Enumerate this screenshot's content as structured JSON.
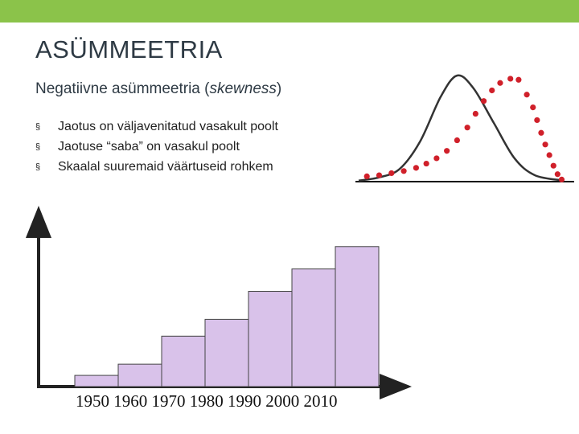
{
  "slide": {
    "title": "ASÜMMEETRIA",
    "subtitle_text": "Negatiivne asümmeetria (",
    "subtitle_italic": "skewness",
    "subtitle_close": ")",
    "bullet_marker": "§",
    "bullets": [
      "Jaotus on väljavenitatud vasakult poolt",
      "Jaotuse “saba” on vasakul poolt",
      "Skaalal suuremaid väärtuseid rohkem"
    ],
    "accent_color": "#8bc34a"
  },
  "chart_data": [
    {
      "type": "line",
      "description_role": "skew-illustration",
      "series": [
        {
          "color": "#333333",
          "style": "solid",
          "values": [
            {
              "x": 0.0,
              "y": 0.01
            },
            {
              "x": 0.1,
              "y": 0.04
            },
            {
              "x": 0.2,
              "y": 0.12
            },
            {
              "x": 0.3,
              "y": 0.38
            },
            {
              "x": 0.4,
              "y": 0.8
            },
            {
              "x": 0.48,
              "y": 1.0
            },
            {
              "x": 0.56,
              "y": 0.88
            },
            {
              "x": 0.66,
              "y": 0.55
            },
            {
              "x": 0.76,
              "y": 0.22
            },
            {
              "x": 0.86,
              "y": 0.06
            },
            {
              "x": 1.0,
              "y": 0.01
            }
          ]
        },
        {
          "color": "#d0202a",
          "style": "dotted",
          "values": [
            {
              "x": 0.04,
              "y": 0.05
            },
            {
              "x": 0.1,
              "y": 0.06
            },
            {
              "x": 0.16,
              "y": 0.08
            },
            {
              "x": 0.22,
              "y": 0.1
            },
            {
              "x": 0.28,
              "y": 0.13
            },
            {
              "x": 0.33,
              "y": 0.17
            },
            {
              "x": 0.38,
              "y": 0.22
            },
            {
              "x": 0.43,
              "y": 0.29
            },
            {
              "x": 0.48,
              "y": 0.39
            },
            {
              "x": 0.53,
              "y": 0.51
            },
            {
              "x": 0.57,
              "y": 0.64
            },
            {
              "x": 0.61,
              "y": 0.76
            },
            {
              "x": 0.65,
              "y": 0.86
            },
            {
              "x": 0.69,
              "y": 0.93
            },
            {
              "x": 0.74,
              "y": 0.97
            },
            {
              "x": 0.78,
              "y": 0.96
            },
            {
              "x": 0.82,
              "y": 0.82
            },
            {
              "x": 0.85,
              "y": 0.7
            },
            {
              "x": 0.87,
              "y": 0.58
            },
            {
              "x": 0.89,
              "y": 0.46
            },
            {
              "x": 0.91,
              "y": 0.35
            },
            {
              "x": 0.93,
              "y": 0.25
            },
            {
              "x": 0.95,
              "y": 0.15
            },
            {
              "x": 0.97,
              "y": 0.07
            },
            {
              "x": 0.99,
              "y": 0.02
            }
          ]
        }
      ]
    },
    {
      "type": "bar",
      "categories": [
        "1950",
        "1960",
        "1970",
        "1980",
        "1990",
        "2000",
        "2010"
      ],
      "values": [
        1,
        2,
        4.5,
        6,
        8.5,
        10.5,
        12.5
      ],
      "ylim": [
        0,
        16
      ],
      "bar_color": "#d9c2ea",
      "bar_edge": "#444444"
    }
  ]
}
